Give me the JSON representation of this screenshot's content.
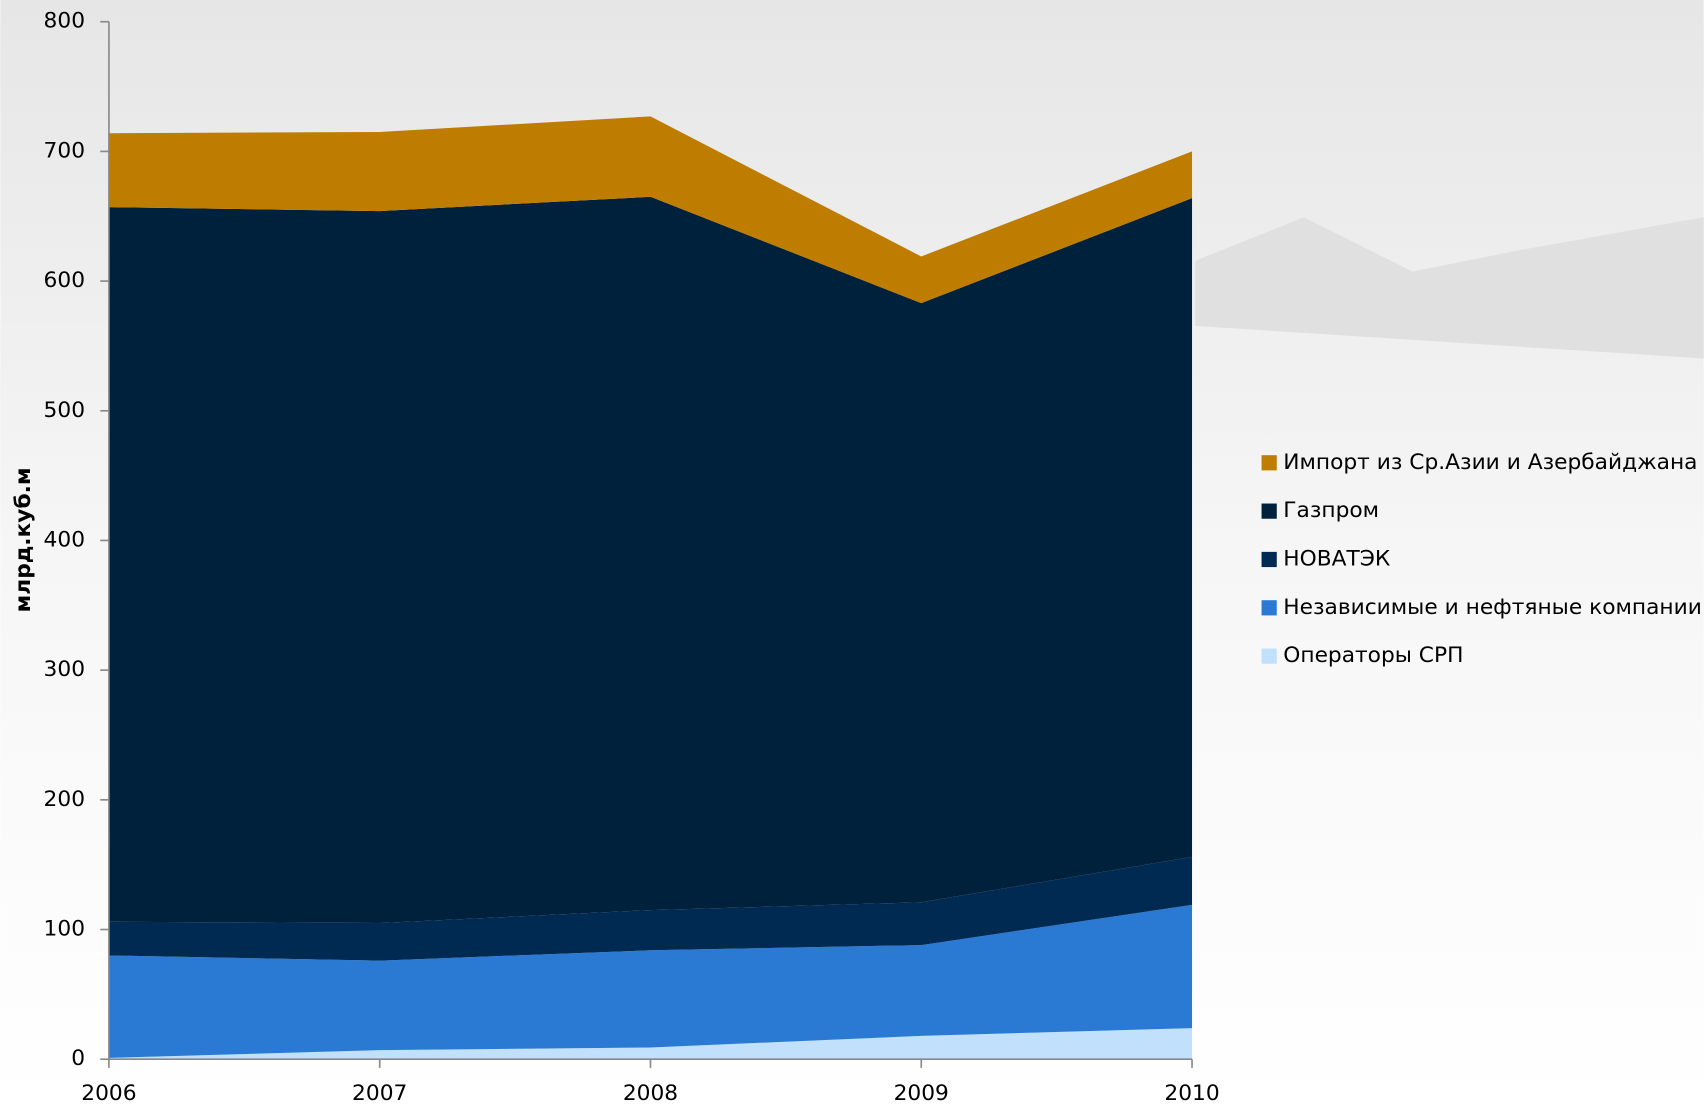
{
  "chart_data": {
    "type": "stacked_area",
    "y_label": "млрд.куб.м",
    "categories": [
      "2006",
      "2007",
      "2008",
      "2009",
      "2010"
    ],
    "series": [
      {
        "name": "Импорт из Ср.Азии и Азербайджана",
        "color": "#bf7d00",
        "values": [
          57,
          61,
          62,
          36,
          36
        ]
      },
      {
        "name": "Газпром",
        "color": "#00213b",
        "values": [
          551,
          549,
          550,
          462,
          508
        ]
      },
      {
        "name": "НОВАТЭК",
        "color": "#002a52",
        "values": [
          26,
          29,
          31,
          33,
          37
        ]
      },
      {
        "name": "Независимые и нефтяные компании",
        "color": "#2a7ad4",
        "values": [
          79,
          69,
          75,
          70,
          95
        ]
      },
      {
        "name": "Операторы СРП",
        "color": "#c0e0fb",
        "values": [
          1,
          7,
          9,
          18,
          24
        ]
      }
    ],
    "ylim": [
      0,
      800
    ],
    "yticks": [
      0,
      100,
      200,
      300,
      400,
      500,
      600,
      700,
      800
    ],
    "grid": false,
    "legend": "right"
  }
}
